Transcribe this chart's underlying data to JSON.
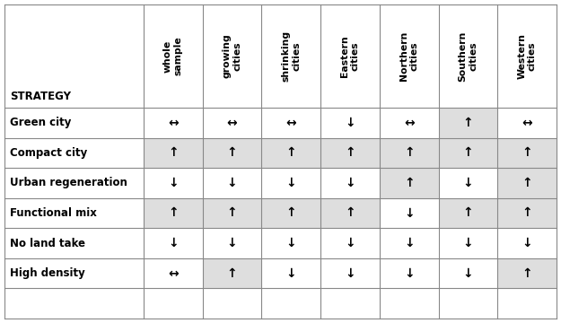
{
  "col_headers": [
    "whole\nsample",
    "growing\ncities",
    "shrinking\ncities",
    "Eastern\ncities",
    "Northern\ncities",
    "Southern\ncities",
    "Western\ncities"
  ],
  "row_headers": [
    "STRATEGY",
    "Green city",
    "Compact city",
    "Urban regeneration",
    "Functional mix",
    "No land take",
    "High density"
  ],
  "symbols": [
    [
      "",
      "",
      "",
      "",
      "",
      "",
      ""
    ],
    [
      "↔",
      "↔",
      "↔",
      "↓",
      "↔",
      "↑",
      "↔"
    ],
    [
      "↑",
      "↑",
      "↑",
      "↑",
      "↑",
      "↑",
      "↑"
    ],
    [
      "↓",
      "↓",
      "↓",
      "↓",
      "↑",
      "↓",
      "↑"
    ],
    [
      "↑",
      "↑",
      "↑",
      "↑",
      "↓",
      "↑",
      "↑"
    ],
    [
      "↓",
      "↓",
      "↓",
      "↓",
      "↓",
      "↓",
      "↓"
    ],
    [
      "↔",
      "↑",
      "↓",
      "↓",
      "↓",
      "↓",
      "↑"
    ]
  ],
  "cell_shading": [
    [
      false,
      false,
      false,
      false,
      false,
      false,
      false
    ],
    [
      false,
      false,
      false,
      false,
      false,
      true,
      false
    ],
    [
      true,
      true,
      true,
      true,
      true,
      true,
      true
    ],
    [
      false,
      false,
      false,
      false,
      true,
      false,
      true
    ],
    [
      true,
      true,
      true,
      true,
      false,
      true,
      true
    ],
    [
      false,
      false,
      false,
      false,
      false,
      false,
      false
    ],
    [
      false,
      true,
      false,
      false,
      false,
      false,
      true
    ]
  ],
  "shade_color": "#dedede",
  "white_color": "#ffffff",
  "border_color": "#888888",
  "symbol_fontsize": 10,
  "header_fontsize": 7.8,
  "row_label_fontsize": 8.5
}
